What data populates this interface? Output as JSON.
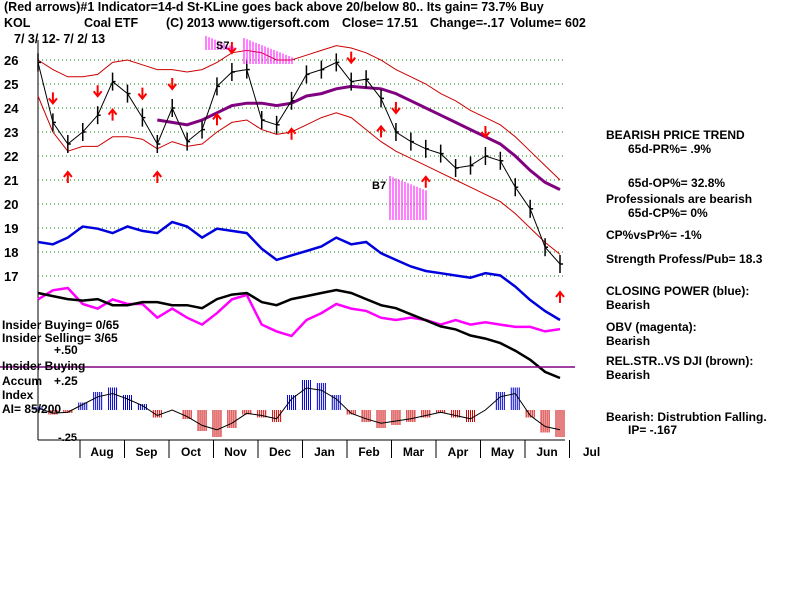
{
  "header": {
    "line1": "(Red arrows)#1 Indicator=14-d St-KLine goes back above 20/below 80..  Its gain= 73.7% Buy",
    "symbol": "KOL",
    "name": "Coal ETF",
    "copyright": "(C) 2013 www.tigersoft.com",
    "close": "Close=  17.51",
    "change": "Change=-.17",
    "volume": "Volume=  602",
    "date_range": "7/ 3/ 12-  7/ 2/ 13"
  },
  "left_panel": {
    "insider_buying": "Insider Buying= 0/65",
    "insider_selling": "Insider Selling= 3/65",
    "plus50": "+.50",
    "insider_line": "Insider Buying",
    "accum": "Accum",
    "plus25": "+.25",
    "index": "Index",
    "ai": "AI= 85/200",
    "minus25": "-.25"
  },
  "annotations": {
    "s7": "S7",
    "b7": "B7"
  },
  "side_panel": {
    "bearish_price_trend": "BEARISH PRICE TREND",
    "pr": "65d-PR%= .9%",
    "op": "65d-OP%= 32.8%",
    "professionals": "Professionals are bearish",
    "cp": "65d-CP%= 0%",
    "cpvspr": "CP%vsPr%= -1%",
    "strength": "Strength Profess/Pub= 18.3",
    "closing_power": "CLOSING POWER (blue):",
    "closing_power_val": "Bearish",
    "obv": "OBV (magenta):",
    "obv_val": "Bearish",
    "relstr": "REL.STR..VS DJI (brown):",
    "relstr_val": "Bearish",
    "distribution": "Bearish:  Distrubtion Falling.",
    "ip": "IP= -.167"
  },
  "colors": {
    "price": "#000000",
    "band": "#cc0000",
    "ma": "#800080",
    "closing_power": "#0000dd",
    "obv": "#ff00ff",
    "relstr": "#000000",
    "arrow": "#ff0000",
    "accum_pos": "#0000cc",
    "accum_neg": "#cc0000",
    "insider_line": "#800080",
    "grid": "#008000"
  },
  "chart_data": {
    "type": "line",
    "title": "KOL Coal ETF",
    "x_range": [
      "2012-07-03",
      "2013-07-02"
    ],
    "xticks": [
      "Aug",
      "Sep",
      "Oct",
      "Nov",
      "Dec",
      "Jan",
      "Feb",
      "Mar",
      "Apr",
      "May",
      "Jun",
      "Jul"
    ],
    "yticks": [
      26,
      25,
      24,
      23,
      22,
      21,
      20,
      19,
      18,
      17
    ],
    "ylim": [
      16.3,
      26.6
    ],
    "series": [
      {
        "name": "KOL close",
        "values": [
          25.9,
          23.4,
          22.5,
          23.0,
          23.7,
          25.1,
          24.6,
          23.6,
          22.5,
          24.0,
          22.6,
          23.1,
          24.9,
          25.5,
          25.6,
          23.5,
          23.3,
          24.3,
          25.4,
          25.6,
          25.9,
          25.1,
          25.2,
          24.4,
          23.0,
          22.6,
          22.3,
          22.1,
          21.5,
          21.6,
          22.0,
          21.8,
          20.7,
          19.8,
          18.2,
          17.5
        ]
      },
      {
        "name": "65-day MA",
        "values": [
          null,
          null,
          null,
          null,
          null,
          null,
          null,
          null,
          23.5,
          23.4,
          23.3,
          23.5,
          23.8,
          24.1,
          24.2,
          24.2,
          24.1,
          24.2,
          24.5,
          24.6,
          24.8,
          24.9,
          24.85,
          24.8,
          24.6,
          24.3,
          24.0,
          23.7,
          23.4,
          23.1,
          22.8,
          22.5,
          22.0,
          21.4,
          20.9,
          20.6
        ]
      },
      {
        "name": "Upper band",
        "values": [
          26.0,
          25.6,
          25.3,
          25.3,
          25.4,
          25.9,
          26.0,
          25.8,
          25.6,
          25.6,
          25.5,
          25.6,
          25.9,
          26.3,
          26.4,
          26.3,
          26.0,
          26.0,
          26.2,
          26.4,
          26.6,
          26.5,
          26.3,
          26.0,
          25.6,
          25.3,
          25.0,
          24.6,
          24.3,
          23.9,
          23.6,
          23.3,
          22.8,
          22.2,
          21.6,
          21.0
        ]
      },
      {
        "name": "Lower band",
        "values": [
          24.5,
          23.0,
          22.2,
          22.4,
          22.4,
          22.8,
          22.8,
          22.7,
          22.3,
          22.6,
          22.4,
          22.5,
          23.0,
          23.4,
          23.5,
          23.1,
          22.9,
          23.0,
          23.3,
          23.6,
          23.8,
          23.6,
          23.1,
          22.6,
          22.2,
          21.9,
          21.6,
          21.3,
          21.0,
          20.7,
          20.4,
          20.1,
          19.6,
          19.0,
          18.4,
          17.9
        ]
      }
    ],
    "indicators": {
      "closing_power": [
        48,
        47,
        50,
        55,
        54,
        52,
        55,
        53,
        52,
        57,
        55,
        50,
        54,
        53,
        52,
        45,
        40,
        42,
        44,
        46,
        50,
        47,
        48,
        43,
        40,
        37,
        35,
        34,
        33,
        32,
        34,
        33,
        28,
        22,
        17,
        13
      ],
      "obv": [
        64,
        68,
        69,
        62,
        60,
        64,
        62,
        62,
        56,
        60,
        56,
        53,
        58,
        64,
        66,
        53,
        50,
        48,
        55,
        58,
        62,
        60,
        59,
        56,
        55,
        56,
        55,
        53,
        55,
        53,
        54,
        53,
        52,
        52,
        50,
        51
      ],
      "relstr": [
        68,
        66,
        64,
        63,
        64,
        60,
        60,
        62,
        62,
        60,
        60,
        58,
        64,
        67,
        68,
        62,
        60,
        64,
        66,
        68,
        70,
        68,
        64,
        60,
        58,
        54,
        50,
        46,
        44,
        40,
        38,
        35,
        30,
        24,
        16,
        12
      ],
      "accum_index": [
        0.02,
        -0.03,
        -0.02,
        0.05,
        0.12,
        0.15,
        0.1,
        0.04,
        -0.05,
        0.0,
        -0.06,
        -0.14,
        -0.18,
        -0.12,
        -0.03,
        -0.05,
        -0.08,
        0.1,
        0.2,
        0.18,
        0.1,
        -0.03,
        -0.08,
        -0.12,
        -0.1,
        -0.08,
        -0.05,
        -0.02,
        -0.05,
        -0.08,
        0.0,
        0.12,
        0.15,
        -0.05,
        -0.15,
        -0.18
      ]
    }
  }
}
